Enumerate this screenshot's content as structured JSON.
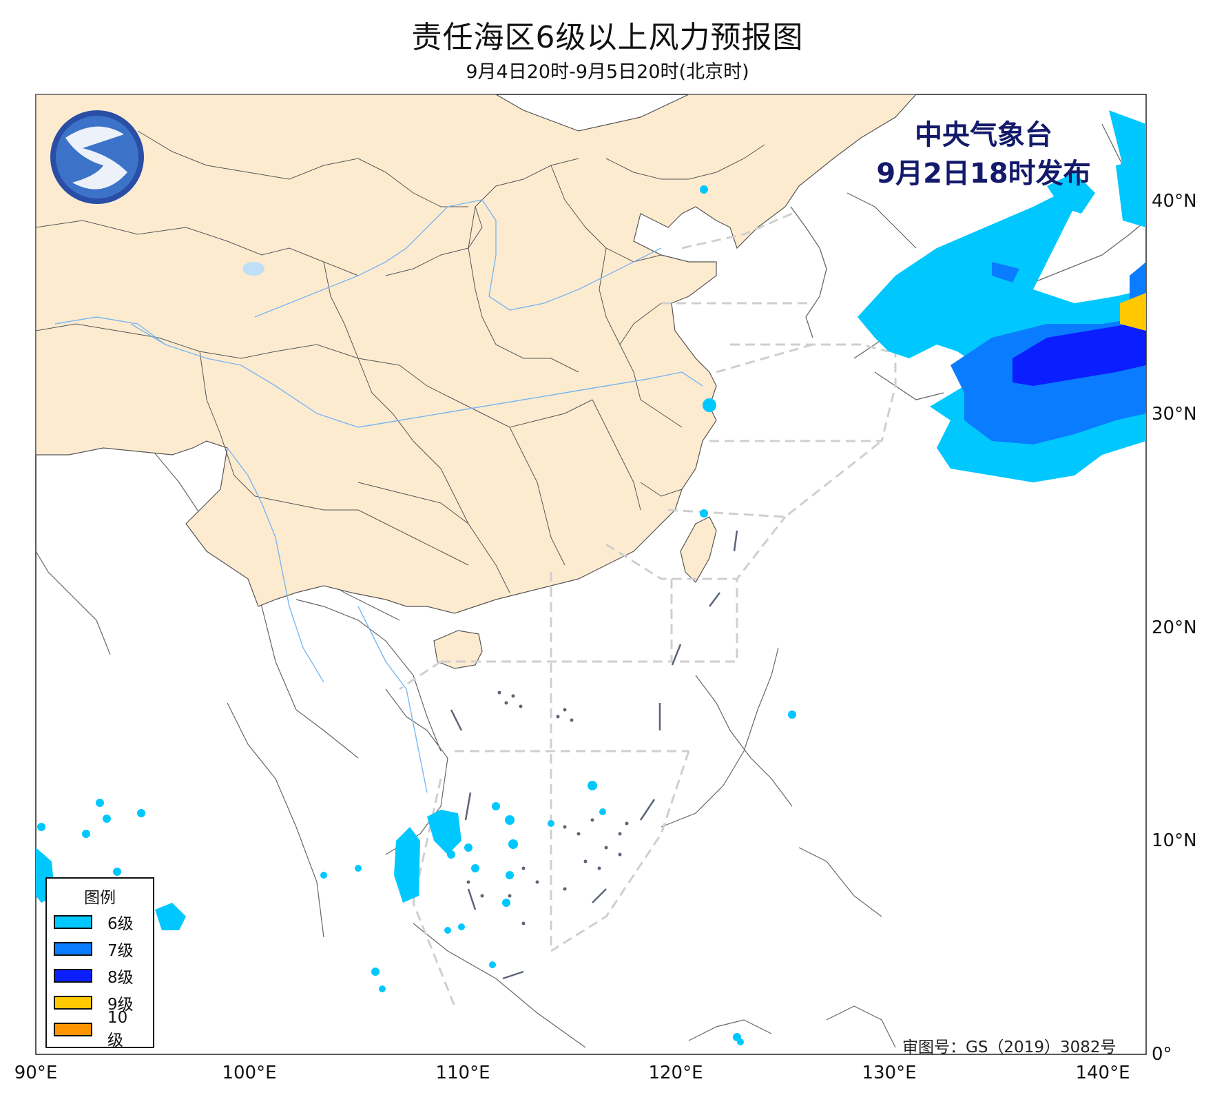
{
  "title": "责任海区6级以上风力预报图",
  "subtitle": "9月4日20时-9月5日20时(北京时)",
  "issuer": {
    "line1": "中央气象台",
    "line2": "9月2日18时发布"
  },
  "approval_number": "审图号：GS（2019）3082号",
  "axes": {
    "x_ticks": [
      "90°E",
      "100°E",
      "110°E",
      "120°E",
      "130°E",
      "140°E"
    ],
    "y_ticks": [
      "40°N",
      "30°N",
      "20°N",
      "10°N",
      "0°"
    ]
  },
  "legend": {
    "title": "图例",
    "items": [
      {
        "label": "6级",
        "color": "#00c8ff"
      },
      {
        "label": "7级",
        "color": "#0a7cff"
      },
      {
        "label": "8级",
        "color": "#0a1eff"
      },
      {
        "label": "9级",
        "color": "#ffc800"
      },
      {
        "label": "10级",
        "color": "#ff9400"
      }
    ]
  },
  "colors": {
    "china_land": "#fdebd0",
    "river": "#7ab6f0",
    "forecast_zone_lines": "#cfcfcf",
    "nine_dash_line": "#5a6478"
  }
}
